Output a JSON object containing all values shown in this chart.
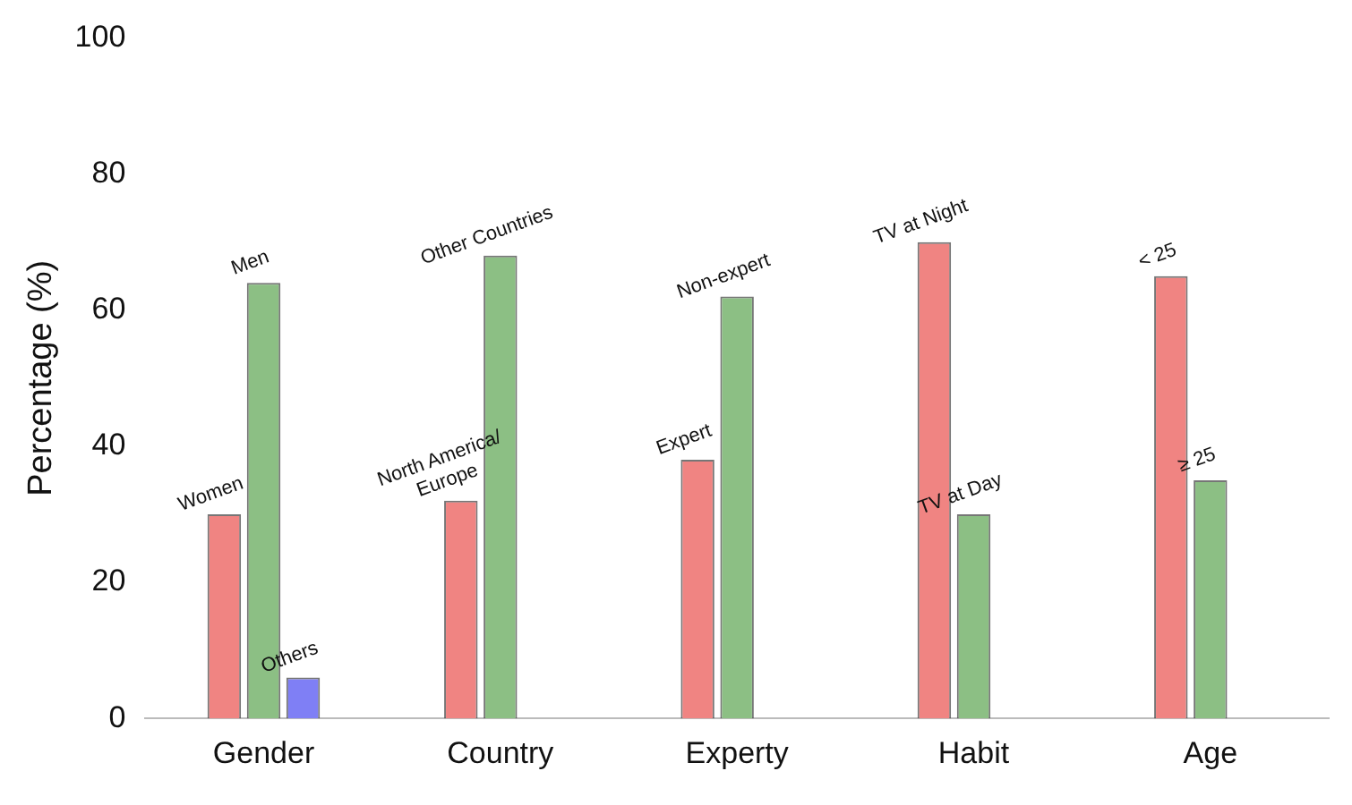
{
  "chart_data": {
    "type": "bar",
    "ylabel": "Percentage (%)",
    "categories": [
      "Gender",
      "Country",
      "Experty",
      "Habit",
      "Age"
    ],
    "series": [
      {
        "color": "#f08482",
        "values": [
          30,
          32,
          38,
          70,
          65
        ],
        "value_labels": [
          "Women",
          "North America/\nEurope",
          "Expert",
          "TV at Night",
          "< 25"
        ]
      },
      {
        "color": "#8cbf84",
        "values": [
          64,
          68,
          62,
          30,
          35
        ],
        "value_labels": [
          "Men",
          "Other Countries",
          "Non-expert",
          "TV at Day",
          "≥ 25"
        ]
      },
      {
        "color": "#7f7ff5",
        "values": [
          6,
          null,
          null,
          null,
          null
        ],
        "value_labels": [
          "Others",
          null,
          null,
          null,
          null
        ]
      }
    ],
    "ylim": [
      0,
      100
    ],
    "yticks": [
      0,
      20,
      40,
      60,
      80,
      100
    ],
    "grid": false,
    "legend": false
  }
}
